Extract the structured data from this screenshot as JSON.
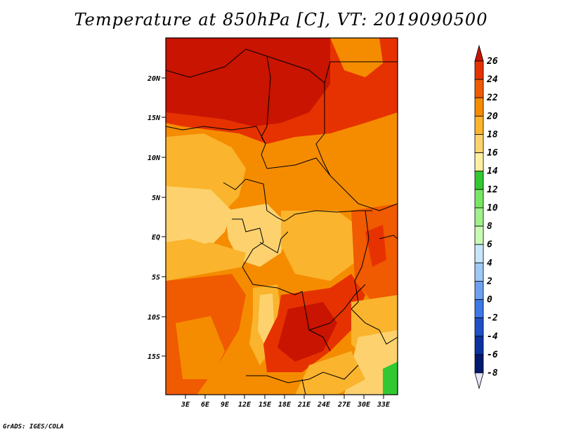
{
  "title": "Temperature at 850hPa [C], VT: 2019090500",
  "credit": "GrADS: IGES/COLA",
  "map": {
    "lat_ticks": [
      "20N",
      "15N",
      "10N",
      "5N",
      "EQ",
      "5S",
      "10S",
      "15S"
    ],
    "lon_ticks": [
      "3E",
      "6E",
      "9E",
      "12E",
      "15E",
      "18E",
      "21E",
      "24E",
      "27E",
      "30E",
      "33E"
    ]
  },
  "colorbar": {
    "labels": [
      "26",
      "24",
      "22",
      "20",
      "18",
      "16",
      "14",
      "12",
      "10",
      "8",
      "6",
      "4",
      "2",
      "0",
      "-2",
      "-4",
      "-6",
      "-8"
    ],
    "colors": [
      "#c81400",
      "#e63200",
      "#f05a00",
      "#f58c00",
      "#fab42d",
      "#fdd26e",
      "#fef0a0",
      "#32c832",
      "#78e664",
      "#a0f08c",
      "#c8fab4",
      "#c8e6fa",
      "#a0c8f5",
      "#6ea0f0",
      "#3c78e6",
      "#1e50c8",
      "#0a32a0",
      "#00186e",
      "#000050"
    ],
    "colors_labelled_note": ""
  }
}
